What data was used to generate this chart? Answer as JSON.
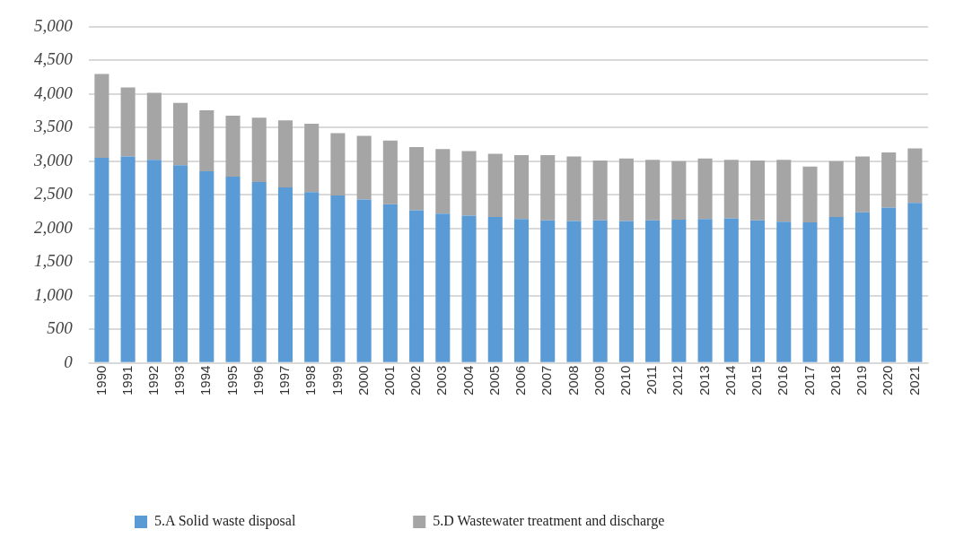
{
  "chart_data": {
    "type": "bar",
    "stacked": true,
    "categories": [
      "1990",
      "1991",
      "1992",
      "1993",
      "1994",
      "1995",
      "1996",
      "1997",
      "1998",
      "1999",
      "2000",
      "2001",
      "2002",
      "2003",
      "2004",
      "2005",
      "2006",
      "2007",
      "2008",
      "2009",
      "2010",
      "2011",
      "2012",
      "2013",
      "2014",
      "2015",
      "2016",
      "2017",
      "2018",
      "2019",
      "2020",
      "2021"
    ],
    "series": [
      {
        "name": "5.A Solid waste disposal",
        "color": "#5b9bd5",
        "values": [
          3050,
          3070,
          3020,
          2940,
          2850,
          2770,
          2690,
          2610,
          2540,
          2490,
          2430,
          2360,
          2270,
          2220,
          2190,
          2170,
          2140,
          2120,
          2110,
          2120,
          2110,
          2120,
          2130,
          2140,
          2150,
          2120,
          2100,
          2090,
          2170,
          2240,
          2310,
          2380
        ]
      },
      {
        "name": "5.D Wastewater treatment and discharge",
        "color": "#a5a5a5",
        "values": [
          1250,
          1030,
          1000,
          930,
          910,
          910,
          960,
          1000,
          1020,
          930,
          950,
          950,
          940,
          960,
          960,
          940,
          950,
          970,
          960,
          890,
          930,
          900,
          870,
          900,
          870,
          890,
          920,
          830,
          830,
          830,
          820,
          810
        ]
      }
    ],
    "ylim": [
      0,
      5000
    ],
    "yticks": [
      {
        "value": 0,
        "label": "0"
      },
      {
        "value": 500,
        "label": "500"
      },
      {
        "value": 1000,
        "label": "1,000"
      },
      {
        "value": 1500,
        "label": "1,500"
      },
      {
        "value": 2000,
        "label": "2,000"
      },
      {
        "value": 2500,
        "label": "2,500"
      },
      {
        "value": 3000,
        "label": "3,000"
      },
      {
        "value": 3500,
        "label": "3,500"
      },
      {
        "value": 4000,
        "label": "4,000"
      },
      {
        "value": 4500,
        "label": "4,500"
      },
      {
        "value": 5000,
        "label": "5,000"
      }
    ],
    "grid": "y",
    "legend": "bottom"
  }
}
